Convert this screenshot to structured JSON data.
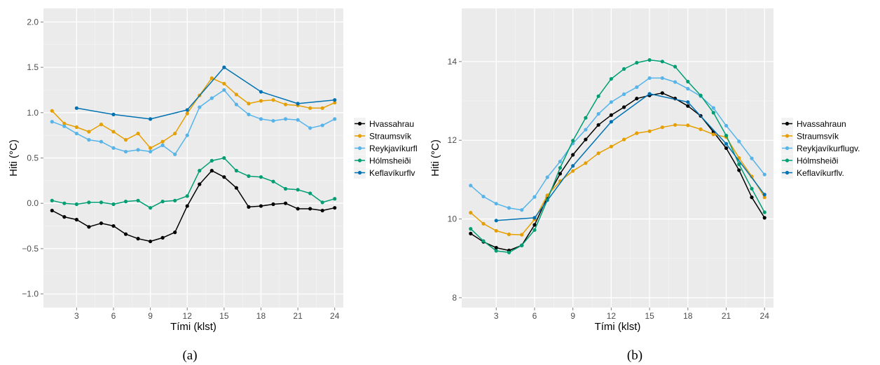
{
  "chart_data": [
    {
      "type": "line",
      "caption": "(a)",
      "xlabel": "Tími (klst)",
      "ylabel": "Hiti (°C)",
      "xlim": [
        0.3,
        24.7
      ],
      "ylim": [
        -1.15,
        2.15
      ],
      "xticks": [
        3,
        6,
        9,
        12,
        15,
        18,
        21,
        24
      ],
      "yticks": [
        -1.0,
        -0.5,
        0.0,
        0.5,
        1.0,
        1.5,
        2.0
      ],
      "ytick_labels": [
        "−1.0",
        "−0.5",
        "0.0",
        "0.5",
        "1.0",
        "1.5",
        "2.0"
      ],
      "grid": true,
      "legend_position": "right",
      "series": [
        {
          "name": "Hvassahrau",
          "color": "#000000",
          "x": [
            1,
            2,
            3,
            4,
            5,
            6,
            7,
            8,
            9,
            10,
            11,
            12,
            13,
            14,
            15,
            16,
            17,
            18,
            19,
            20,
            21,
            22,
            23,
            24
          ],
          "y": [
            -0.08,
            -0.15,
            -0.18,
            -0.26,
            -0.22,
            -0.25,
            -0.34,
            -0.39,
            -0.42,
            -0.38,
            -0.32,
            -0.03,
            0.21,
            0.36,
            0.29,
            0.17,
            -0.04,
            -0.03,
            -0.01,
            0.0,
            -0.06,
            -0.06,
            -0.08,
            -0.05
          ]
        },
        {
          "name": "Straumsvík",
          "color": "#E69F00",
          "x": [
            1,
            2,
            3,
            4,
            5,
            6,
            7,
            8,
            9,
            10,
            11,
            12,
            13,
            14,
            15,
            16,
            17,
            18,
            19,
            20,
            21,
            22,
            23,
            24
          ],
          "y": [
            1.02,
            0.88,
            0.84,
            0.79,
            0.87,
            0.79,
            0.7,
            0.77,
            0.61,
            0.68,
            0.77,
            0.99,
            1.19,
            1.38,
            1.32,
            1.2,
            1.1,
            1.13,
            1.14,
            1.09,
            1.08,
            1.05,
            1.05,
            1.11
          ]
        },
        {
          "name": "Reykjavíkurfl",
          "color": "#56B4E9",
          "x": [
            1,
            2,
            3,
            4,
            5,
            6,
            7,
            8,
            9,
            10,
            11,
            12,
            13,
            14,
            15,
            16,
            17,
            18,
            19,
            20,
            21,
            22,
            23,
            24
          ],
          "y": [
            0.9,
            0.85,
            0.77,
            0.7,
            0.68,
            0.61,
            0.57,
            0.59,
            0.57,
            0.64,
            0.54,
            0.75,
            1.06,
            1.16,
            1.25,
            1.09,
            0.98,
            0.93,
            0.91,
            0.93,
            0.92,
            0.83,
            0.86,
            0.93
          ]
        },
        {
          "name": "Hólmsheiði",
          "color": "#009E73",
          "x": [
            1,
            2,
            3,
            4,
            5,
            6,
            7,
            8,
            9,
            10,
            11,
            12,
            13,
            14,
            15,
            16,
            17,
            18,
            19,
            20,
            21,
            22,
            23,
            24
          ],
          "y": [
            0.03,
            0.0,
            -0.01,
            0.01,
            0.01,
            -0.01,
            0.02,
            0.03,
            -0.05,
            0.02,
            0.03,
            0.08,
            0.36,
            0.47,
            0.5,
            0.36,
            0.3,
            0.29,
            0.24,
            0.16,
            0.15,
            0.11,
            0.01,
            0.05
          ]
        },
        {
          "name": "Keflavíkurflv",
          "color": "#0072B2",
          "x": [
            3,
            6,
            9,
            12,
            15,
            18,
            21,
            24
          ],
          "y": [
            1.05,
            0.98,
            0.93,
            1.03,
            1.5,
            1.23,
            1.1,
            1.14
          ]
        }
      ]
    },
    {
      "type": "line",
      "caption": "(b)",
      "xlabel": "Tími (klst)",
      "ylabel": "Hiti (°C)",
      "xlim": [
        0.3,
        24.7
      ],
      "ylim": [
        7.75,
        15.35
      ],
      "xticks": [
        3,
        6,
        9,
        12,
        15,
        18,
        21,
        24
      ],
      "yticks": [
        8,
        10,
        12,
        14
      ],
      "ytick_labels": [
        "8",
        "10",
        "12",
        "14"
      ],
      "grid": true,
      "legend_position": "right",
      "series": [
        {
          "name": "Hvassahraun",
          "color": "#000000",
          "x": [
            1,
            2,
            3,
            4,
            5,
            6,
            7,
            8,
            9,
            10,
            11,
            12,
            13,
            14,
            15,
            16,
            17,
            18,
            19,
            20,
            21,
            22,
            23,
            24
          ],
          "y": [
            9.63,
            9.42,
            9.27,
            9.2,
            9.33,
            9.85,
            10.55,
            11.15,
            11.63,
            12.02,
            12.39,
            12.64,
            12.84,
            13.06,
            13.14,
            13.2,
            13.06,
            12.87,
            12.62,
            12.21,
            11.8,
            11.24,
            10.55,
            10.03
          ]
        },
        {
          "name": "Straumsvík",
          "color": "#E69F00",
          "x": [
            1,
            2,
            3,
            4,
            5,
            6,
            7,
            8,
            9,
            10,
            11,
            12,
            13,
            14,
            15,
            16,
            17,
            18,
            19,
            20,
            21,
            22,
            23,
            24
          ],
          "y": [
            10.16,
            9.88,
            9.7,
            9.61,
            9.6,
            9.99,
            10.6,
            10.96,
            11.22,
            11.42,
            11.67,
            11.84,
            12.02,
            12.18,
            12.23,
            12.33,
            12.39,
            12.38,
            12.28,
            12.15,
            12.08,
            11.55,
            11.08,
            10.55
          ]
        },
        {
          "name": "Reykjavíkurflugv.",
          "color": "#56B4E9",
          "x": [
            1,
            2,
            3,
            4,
            5,
            6,
            7,
            8,
            9,
            10,
            11,
            12,
            13,
            14,
            15,
            16,
            17,
            18,
            19,
            20,
            21,
            22,
            23,
            24
          ],
          "y": [
            10.85,
            10.57,
            10.39,
            10.28,
            10.23,
            10.56,
            11.06,
            11.46,
            11.92,
            12.27,
            12.67,
            12.97,
            13.17,
            13.35,
            13.58,
            13.58,
            13.48,
            13.31,
            13.12,
            12.82,
            12.37,
            11.97,
            11.54,
            11.13
          ]
        },
        {
          "name": "Hólmsheiði",
          "color": "#009E73",
          "x": [
            1,
            2,
            3,
            4,
            5,
            6,
            7,
            8,
            9,
            10,
            11,
            12,
            13,
            14,
            15,
            16,
            17,
            18,
            19,
            20,
            21,
            22,
            23,
            24
          ],
          "y": [
            9.75,
            9.44,
            9.19,
            9.15,
            9.33,
            9.72,
            10.48,
            11.3,
            11.99,
            12.57,
            13.12,
            13.56,
            13.81,
            13.97,
            14.04,
            14.0,
            13.87,
            13.49,
            13.14,
            12.7,
            12.12,
            11.39,
            10.77,
            10.17
          ]
        },
        {
          "name": "Keflavíkurflv.",
          "color": "#0072B2",
          "x": [
            3,
            6,
            9,
            12,
            15,
            18,
            21,
            24
          ],
          "y": [
            9.96,
            10.03,
            11.35,
            12.47,
            13.18,
            12.97,
            11.91,
            10.62
          ]
        }
      ]
    }
  ]
}
